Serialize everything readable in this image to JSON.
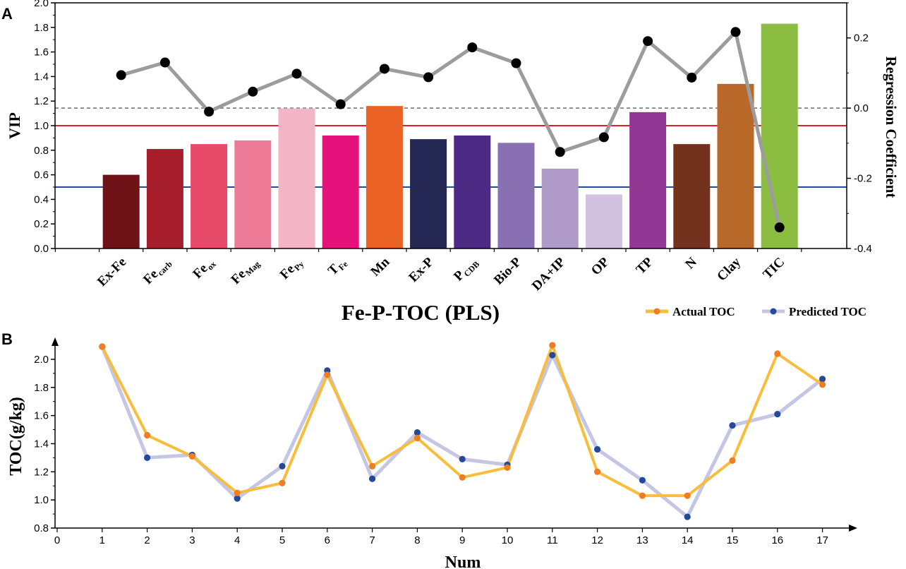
{
  "chart_data": [
    {
      "panel": "A",
      "type": "bar",
      "title": "Fe-P-TOC (PLS)",
      "ylabel": "VIP",
      "y2label": "Regression Coefficient",
      "ylim": [
        0,
        2.0
      ],
      "y2lim": [
        -0.4,
        0.3
      ],
      "yticks": [
        "0.0",
        "0.2",
        "0.4",
        "0.6",
        "0.8",
        "1.0",
        "1.2",
        "1.4",
        "1.6",
        "1.8",
        "2.0"
      ],
      "y2ticks": [
        "-0.4",
        "-0.2",
        "0.0",
        "0.2"
      ],
      "categories": [
        {
          "main": "Ex-Fe",
          "sub": ""
        },
        {
          "main": "Fe",
          "sub": "carb"
        },
        {
          "main": "Fe",
          "sub": "ox"
        },
        {
          "main": "Fe",
          "sub": "Mag"
        },
        {
          "main": "Fe",
          "sub": "Py"
        },
        {
          "main": "T",
          "sub": "Fe"
        },
        {
          "main": "Mn",
          "sub": ""
        },
        {
          "main": "Ex-P",
          "sub": ""
        },
        {
          "main": "P",
          "sub": "CDB"
        },
        {
          "main": "Bio-P",
          "sub": ""
        },
        {
          "main": "DA+IP",
          "sub": ""
        },
        {
          "main": "OP",
          "sub": ""
        },
        {
          "main": "TP",
          "sub": ""
        },
        {
          "main": "N",
          "sub": ""
        },
        {
          "main": "Clay",
          "sub": ""
        },
        {
          "main": "TIC",
          "sub": ""
        }
      ],
      "vip": [
        0.6,
        0.81,
        0.85,
        0.88,
        1.14,
        0.92,
        1.16,
        0.89,
        0.92,
        0.86,
        0.65,
        0.44,
        1.11,
        0.85,
        1.34,
        1.83
      ],
      "bar_colors": [
        "#6e1218",
        "#a61e2c",
        "#e84a6a",
        "#ed7a96",
        "#f3b4c6",
        "#e5127c",
        "#ea6325",
        "#242752",
        "#4d2b84",
        "#8870b2",
        "#b09ac8",
        "#d3c1e0",
        "#933794",
        "#73321e",
        "#b86829",
        "#8abd40"
      ],
      "regression_coefficient": [
        0.094,
        0.13,
        -0.01,
        0.047,
        0.098,
        0.011,
        0.112,
        0.088,
        0.173,
        0.128,
        -0.125,
        -0.083,
        0.191,
        0.087,
        0.217,
        -0.34
      ],
      "reference_lines": [
        {
          "axis": "VIP",
          "value": 1.0,
          "color": "#e31f26",
          "style": "solid"
        },
        {
          "axis": "VIP",
          "value": 0.5,
          "color": "#1f4b9b",
          "style": "solid"
        },
        {
          "axis": "Regression Coefficient",
          "value": 0.0,
          "color": "#808080",
          "style": "dashed"
        }
      ],
      "coef_line_color": "#9c9c9c",
      "legend": [
        {
          "name": "Actual TOC",
          "color": "#f9bd3c",
          "marker": "#ef7d23"
        },
        {
          "name": "Predicted TOC",
          "color": "#c5c6e3",
          "marker": "#24499a"
        }
      ]
    },
    {
      "panel": "B",
      "type": "line",
      "xlabel": "Num",
      "ylabel": "TOC(g/kg)",
      "xlim": [
        0,
        17.6
      ],
      "ylim": [
        0.8,
        2.1
      ],
      "xticks": [
        "0",
        "1",
        "2",
        "3",
        "4",
        "5",
        "6",
        "7",
        "8",
        "9",
        "10",
        "11",
        "12",
        "13",
        "14",
        "15",
        "16",
        "17"
      ],
      "yticks": [
        "0.8",
        "1.0",
        "1.2",
        "1.4",
        "1.6",
        "1.8",
        "2.0"
      ],
      "x": [
        1,
        2,
        3,
        4,
        5,
        6,
        7,
        8,
        9,
        10,
        11,
        12,
        13,
        14,
        15,
        16,
        17
      ],
      "series": [
        {
          "name": "Actual TOC",
          "line_color": "#f9bd3c",
          "marker_color": "#ef7d23",
          "values": [
            2.09,
            1.46,
            1.31,
            1.05,
            1.12,
            1.89,
            1.24,
            1.44,
            1.16,
            1.23,
            2.1,
            1.2,
            1.03,
            1.03,
            1.28,
            2.04,
            1.82
          ]
        },
        {
          "name": "Predicted TOC",
          "line_color": "#c5c6e3",
          "marker_color": "#24499a",
          "values": [
            2.09,
            1.3,
            1.32,
            1.01,
            1.24,
            1.92,
            1.15,
            1.48,
            1.29,
            1.25,
            2.03,
            1.36,
            1.14,
            0.88,
            1.53,
            1.61,
            1.86
          ]
        }
      ]
    }
  ],
  "labels": {
    "panel_a": "A",
    "panel_b": "B"
  }
}
